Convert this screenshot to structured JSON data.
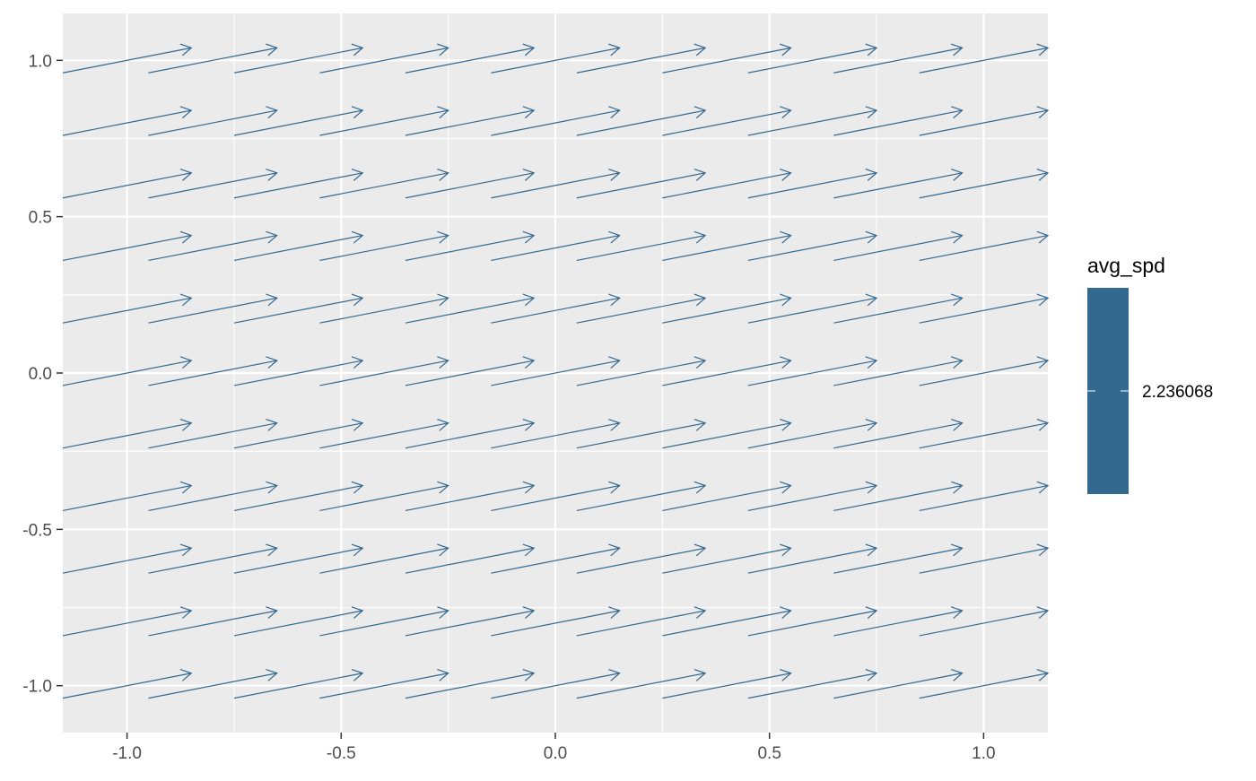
{
  "chart_data": {
    "type": "vector-field",
    "title": "",
    "xlabel": "",
    "ylabel": "",
    "xlim": [
      -1.15,
      1.15
    ],
    "ylim": [
      -1.15,
      1.15
    ],
    "x_ticks": [
      -1.0,
      -0.5,
      0.0,
      0.5,
      1.0
    ],
    "x_tick_labels": [
      "-1.0",
      "-0.5",
      "0.0",
      "0.5",
      "1.0"
    ],
    "y_ticks": [
      -1.0,
      -0.5,
      0.0,
      0.5,
      1.0
    ],
    "y_tick_labels": [
      "-1.0",
      "-0.5",
      "0.0",
      "0.5",
      "1.0"
    ],
    "grid": true,
    "grid_x": [
      -1.0,
      -0.8,
      -0.6,
      -0.4,
      -0.2,
      0.0,
      0.2,
      0.4,
      0.6,
      0.8,
      1.0
    ],
    "grid_y": [
      -1.0,
      -0.8,
      -0.6,
      -0.4,
      -0.2,
      0.0,
      0.2,
      0.4,
      0.6,
      0.8,
      1.0
    ],
    "vector": {
      "dx": 0.3,
      "dy": 0.08
    },
    "arrow_color": "#33688f",
    "panel_background": "#ebebeb",
    "legend": {
      "title": "avg_spd",
      "placement": "right",
      "color": "#33688f",
      "labels": [
        "2.236068"
      ]
    }
  }
}
